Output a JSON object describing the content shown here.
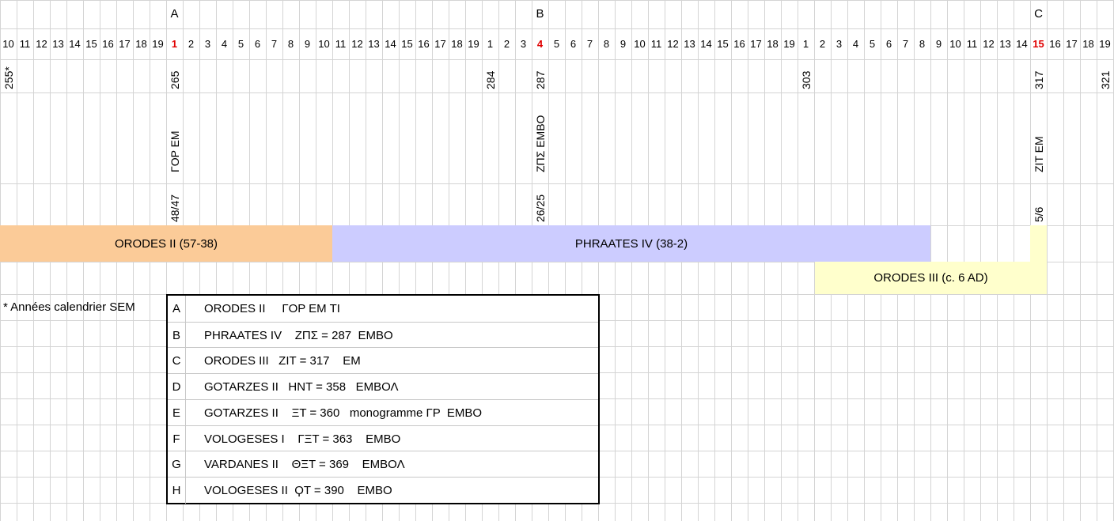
{
  "columns": [
    "10",
    "11",
    "12",
    "13",
    "14",
    "15",
    "16",
    "17",
    "18",
    "19",
    "1",
    "2",
    "3",
    "4",
    "5",
    "6",
    "7",
    "8",
    "9",
    "10",
    "11",
    "12",
    "13",
    "14",
    "15",
    "16",
    "17",
    "18",
    "19",
    "1",
    "2",
    "3",
    "4",
    "5",
    "6",
    "7",
    "8",
    "9",
    "10",
    "11",
    "12",
    "13",
    "14",
    "15",
    "16",
    "17",
    "18",
    "19",
    "1",
    "2",
    "3",
    "4",
    "5",
    "6",
    "7",
    "8",
    "9",
    "10",
    "11",
    "12",
    "13",
    "14",
    "15",
    "16",
    "17",
    "18",
    "19"
  ],
  "highlight_columns": [
    10,
    32,
    62
  ],
  "markers": [
    {
      "col": 10,
      "letter": "A"
    },
    {
      "col": 32,
      "letter": "B"
    },
    {
      "col": 62,
      "letter": "C"
    }
  ],
  "years": [
    {
      "col": 0,
      "text": "255*"
    },
    {
      "col": 10,
      "text": "265"
    },
    {
      "col": 29,
      "text": "284"
    },
    {
      "col": 32,
      "text": "287"
    },
    {
      "col": 48,
      "text": "303"
    },
    {
      "col": 62,
      "text": "317"
    },
    {
      "col": 66,
      "text": "321"
    }
  ],
  "inscriptions": [
    {
      "col": 10,
      "text": "ΓΟΡ ΕΜ"
    },
    {
      "col": 32,
      "text": "ΖΠΣ ΕΜΒΟ"
    },
    {
      "col": 62,
      "text": "ΖΙΤ ΕΜ"
    }
  ],
  "dates": [
    {
      "col": 10,
      "text": "48/47"
    },
    {
      "col": 32,
      "text": "26/25"
    },
    {
      "col": 62,
      "text": "5/6"
    }
  ],
  "reigns": [
    {
      "name": "ORODES II (57-38)",
      "color": "#fbcb98",
      "start_col": 0,
      "end_col": 19
    },
    {
      "name": "PHRAATES IV (38-2)",
      "color": "#ccccff",
      "start_col": 20,
      "end_col": 55
    },
    {
      "name": "ORODES III (c. 6 AD)",
      "color": "#ffffcc",
      "start_col": 49,
      "end_col": 62
    }
  ],
  "note": "* Années calendrier SEM",
  "legend": [
    {
      "letter": "A",
      "text": "ORODES II     ΓΟΡ ΕΜ ΤΙ"
    },
    {
      "letter": "B",
      "text": "PHRAATES IV    ΖΠΣ = 287  ΕΜΒΟ"
    },
    {
      "letter": "C",
      "text": "ORODES III   ΖΙΤ = 317    ΕΜ"
    },
    {
      "letter": "D",
      "text": "GOTARZES II   ΗΝΤ = 358   ΕΜΒΟΛ"
    },
    {
      "letter": "E",
      "text": "GOTARZES II    ΞΤ = 360   monogramme ΓΡ  ΕΜΒΟ"
    },
    {
      "letter": "F",
      "text": "VOLOGESES I    ΓΞΤ = 363    ΕΜΒΟ"
    },
    {
      "letter": "G",
      "text": "VARDANES II    ΘΞΤ = 369    ΕΜΒΟΛ"
    },
    {
      "letter": "H",
      "text": "VOLOGESES II  ϘΤ = 390    ΕΜΒΟ"
    }
  ]
}
